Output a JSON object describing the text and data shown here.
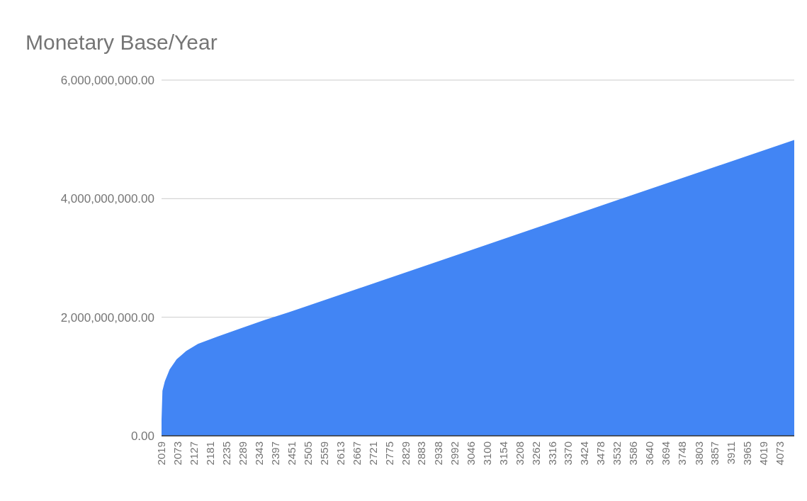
{
  "chart_data": {
    "type": "area",
    "title": "Monetary Base/Year",
    "x": [
      2019,
      2022,
      2030,
      2046,
      2069,
      2101,
      2140,
      2203,
      2281,
      2360,
      2439,
      2486,
      3000,
      3535,
      4120
    ],
    "series": [
      {
        "color": "#4285f4",
        "values": [
          270000000,
          760000000,
          920000000,
          1120000000,
          1290000000,
          1430000000,
          1550000000,
          1670000000,
          1810000000,
          1950000000,
          2080000000,
          2160000000,
          3050000000,
          3980000000,
          4990000000
        ]
      }
    ],
    "xlim": [
      2019,
      4120
    ],
    "xticks": [
      2019,
      2073,
      2127,
      2181,
      2235,
      2289,
      2343,
      2397,
      2451,
      2505,
      2559,
      2613,
      2667,
      2721,
      2775,
      2829,
      2883,
      2938,
      2992,
      3046,
      3100,
      3154,
      3208,
      3262,
      3316,
      3370,
      3424,
      3478,
      3532,
      3586,
      3640,
      3694,
      3748,
      3803,
      3857,
      3911,
      3965,
      4019,
      4073
    ],
    "ylim": [
      0,
      6000000000
    ],
    "yticks": [
      {
        "value": 0,
        "label": "0.00"
      },
      {
        "value": 2000000000,
        "label": "2,000,000,000.00"
      },
      {
        "value": 4000000000,
        "label": "4,000,000,000.00"
      },
      {
        "value": 6000000000,
        "label": "6,000,000,000.00"
      }
    ],
    "grid": "y"
  }
}
